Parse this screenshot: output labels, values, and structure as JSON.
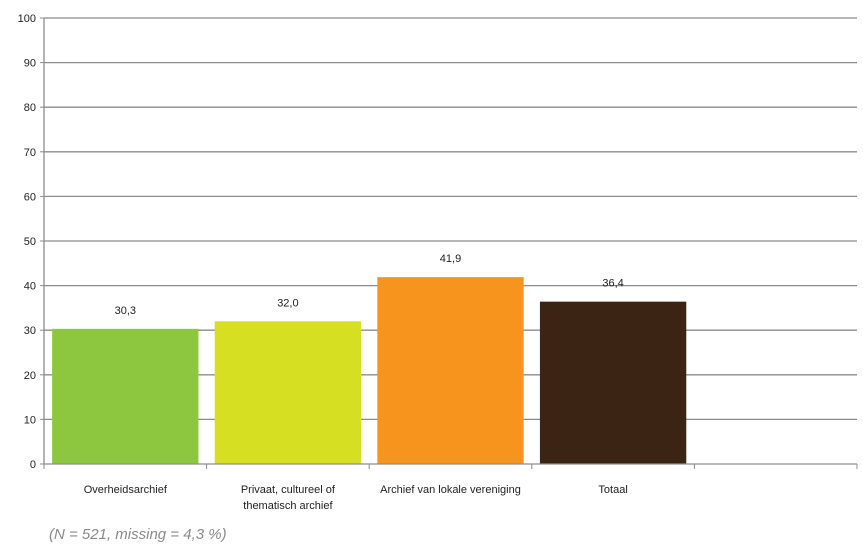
{
  "chart_data": {
    "type": "bar",
    "categories": [
      [
        "Overheidsarchief"
      ],
      [
        "Privaat, cultureel of",
        "thematisch archief"
      ],
      [
        "Archief van lokale vereniging"
      ],
      [
        "Totaal"
      ]
    ],
    "values": [
      30.3,
      32.0,
      41.9,
      36.4
    ],
    "value_labels": [
      "30,3",
      "32,0",
      "41,9",
      "36,4"
    ],
    "bar_colors": [
      "#8dc63f",
      "#d7df23",
      "#f7941d",
      "#3c2415"
    ],
    "ylim": [
      0,
      100
    ],
    "yticks": [
      0,
      10,
      20,
      30,
      40,
      50,
      60,
      70,
      80,
      90,
      100
    ],
    "grid": true,
    "title": "",
    "xlabel": "",
    "ylabel": ""
  },
  "footnote": "(N = 521, missing = 4,3 %)"
}
